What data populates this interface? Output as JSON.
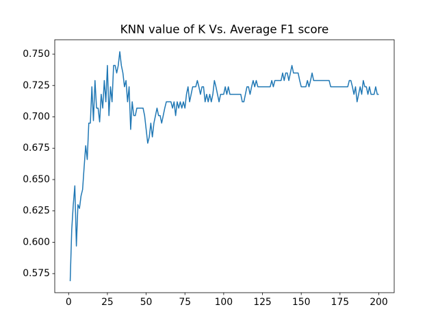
{
  "chart_data": {
    "type": "line",
    "title": "KNN value of K Vs. Average F1 score",
    "color": "#1f77b4",
    "x": [
      1,
      2,
      3,
      4,
      5,
      6,
      7,
      8,
      9,
      10,
      11,
      12,
      13,
      14,
      15,
      16,
      17,
      18,
      19,
      20,
      21,
      22,
      23,
      24,
      25,
      26,
      27,
      28,
      29,
      30,
      31,
      32,
      33,
      34,
      35,
      36,
      37,
      38,
      39,
      40,
      41,
      42,
      43,
      44,
      45,
      46,
      47,
      48,
      49,
      50,
      51,
      52,
      53,
      54,
      55,
      56,
      57,
      58,
      59,
      60,
      61,
      62,
      63,
      64,
      65,
      66,
      67,
      68,
      69,
      70,
      71,
      72,
      73,
      74,
      75,
      76,
      77,
      78,
      79,
      80,
      81,
      82,
      83,
      84,
      85,
      86,
      87,
      88,
      89,
      90,
      91,
      92,
      93,
      94,
      95,
      96,
      97,
      98,
      99,
      100,
      101,
      102,
      103,
      104,
      105,
      106,
      107,
      108,
      109,
      110,
      111,
      112,
      113,
      114,
      115,
      116,
      117,
      118,
      119,
      120,
      121,
      122,
      123,
      124,
      125,
      126,
      127,
      128,
      129,
      130,
      131,
      132,
      133,
      134,
      135,
      136,
      137,
      138,
      139,
      140,
      141,
      142,
      143,
      144,
      145,
      146,
      147,
      148,
      149,
      150,
      151,
      152,
      153,
      154,
      155,
      156,
      157,
      158,
      159,
      160,
      161,
      162,
      163,
      164,
      165,
      166,
      167,
      168,
      169,
      170,
      171,
      172,
      173,
      174,
      175,
      176,
      177,
      178,
      179,
      180,
      181,
      182,
      183,
      184,
      185,
      186,
      187,
      188,
      189,
      190,
      191,
      192,
      193,
      194,
      195,
      196,
      197,
      198,
      199,
      200
    ],
    "values": [
      0.569,
      0.61,
      0.63,
      0.645,
      0.597,
      0.63,
      0.627,
      0.637,
      0.642,
      0.66,
      0.677,
      0.666,
      0.695,
      0.695,
      0.724,
      0.697,
      0.729,
      0.707,
      0.707,
      0.696,
      0.718,
      0.707,
      0.729,
      0.712,
      0.741,
      0.701,
      0.724,
      0.712,
      0.741,
      0.741,
      0.735,
      0.741,
      0.752,
      0.741,
      0.735,
      0.724,
      0.729,
      0.712,
      0.724,
      0.69,
      0.712,
      0.701,
      0.701,
      0.707,
      0.707,
      0.707,
      0.707,
      0.707,
      0.701,
      0.69,
      0.679,
      0.684,
      0.695,
      0.684,
      0.695,
      0.701,
      0.707,
      0.701,
      0.701,
      0.695,
      0.701,
      0.707,
      0.712,
      0.712,
      0.712,
      0.712,
      0.707,
      0.712,
      0.701,
      0.712,
      0.707,
      0.712,
      0.707,
      0.712,
      0.707,
      0.718,
      0.724,
      0.712,
      0.718,
      0.724,
      0.724,
      0.724,
      0.729,
      0.724,
      0.718,
      0.724,
      0.724,
      0.712,
      0.718,
      0.712,
      0.718,
      0.712,
      0.718,
      0.729,
      0.724,
      0.718,
      0.712,
      0.718,
      0.718,
      0.718,
      0.724,
      0.718,
      0.724,
      0.718,
      0.718,
      0.718,
      0.718,
      0.718,
      0.718,
      0.718,
      0.718,
      0.712,
      0.712,
      0.718,
      0.724,
      0.724,
      0.718,
      0.724,
      0.729,
      0.724,
      0.729,
      0.724,
      0.724,
      0.724,
      0.724,
      0.724,
      0.724,
      0.724,
      0.724,
      0.724,
      0.729,
      0.724,
      0.729,
      0.729,
      0.729,
      0.729,
      0.729,
      0.735,
      0.729,
      0.735,
      0.735,
      0.729,
      0.735,
      0.741,
      0.735,
      0.735,
      0.735,
      0.735,
      0.729,
      0.724,
      0.724,
      0.724,
      0.724,
      0.729,
      0.724,
      0.729,
      0.735,
      0.729,
      0.729,
      0.729,
      0.729,
      0.729,
      0.729,
      0.729,
      0.729,
      0.729,
      0.729,
      0.729,
      0.724,
      0.724,
      0.724,
      0.724,
      0.724,
      0.724,
      0.724,
      0.724,
      0.724,
      0.724,
      0.724,
      0.724,
      0.729,
      0.729,
      0.724,
      0.718,
      0.724,
      0.712,
      0.718,
      0.724,
      0.718,
      0.729,
      0.724,
      0.724,
      0.718,
      0.724,
      0.718,
      0.718,
      0.718,
      0.724,
      0.718,
      0.718
    ],
    "xlim": [
      -8.95,
      209.95
    ],
    "xticks": [
      0,
      25,
      50,
      75,
      100,
      125,
      150,
      175,
      200
    ],
    "ylim": [
      0.5598,
      0.7615
    ],
    "yticks": [
      0.575,
      {
        "value": 0.6,
        "label": "0.600"
      },
      0.625,
      {
        "value": 0.65,
        "label": "0.650"
      },
      0.675,
      {
        "value": 0.7,
        "label": "0.700"
      },
      0.725,
      {
        "value": 0.75,
        "label": "0.750"
      }
    ],
    "grid": false
  }
}
